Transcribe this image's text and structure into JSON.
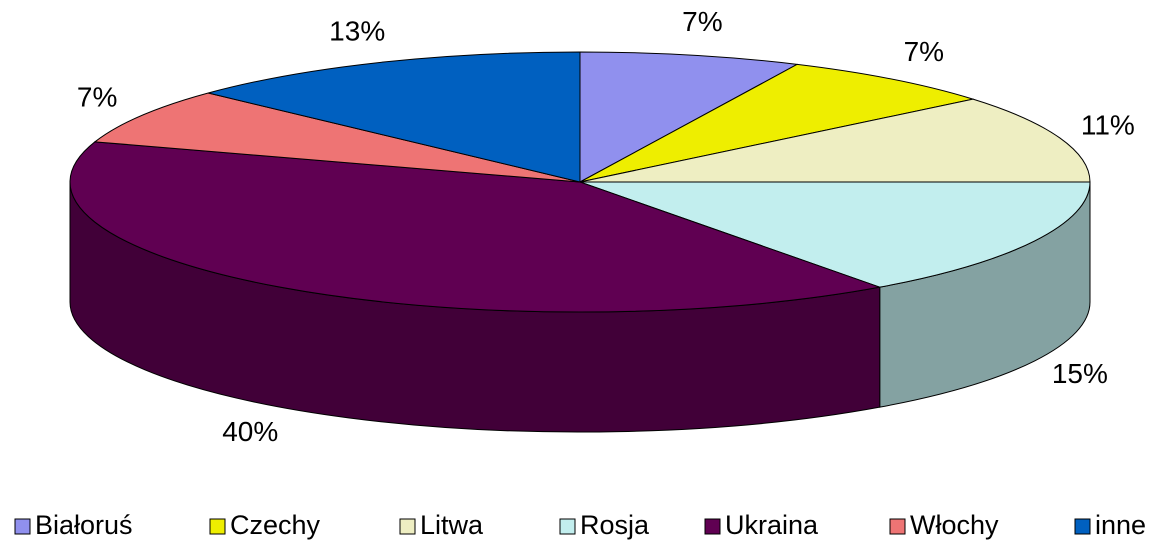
{
  "chart_data": {
    "type": "pie3d",
    "categories": [
      "Białoruś",
      "Czechy",
      "Litwa",
      "Rosja",
      "Ukraina",
      "Włochy",
      "inne"
    ],
    "values": [
      7,
      7,
      11,
      15,
      40,
      7,
      13
    ],
    "value_labels": [
      "7%",
      "7%",
      "11%",
      "15%",
      "40%",
      "7%",
      "13%"
    ],
    "colors": [
      "#9090ee",
      "#eeee00",
      "#eeeec2",
      "#c2eeee",
      "#600052",
      "#ee7474",
      "#0060c0"
    ],
    "legend": "bottom"
  }
}
